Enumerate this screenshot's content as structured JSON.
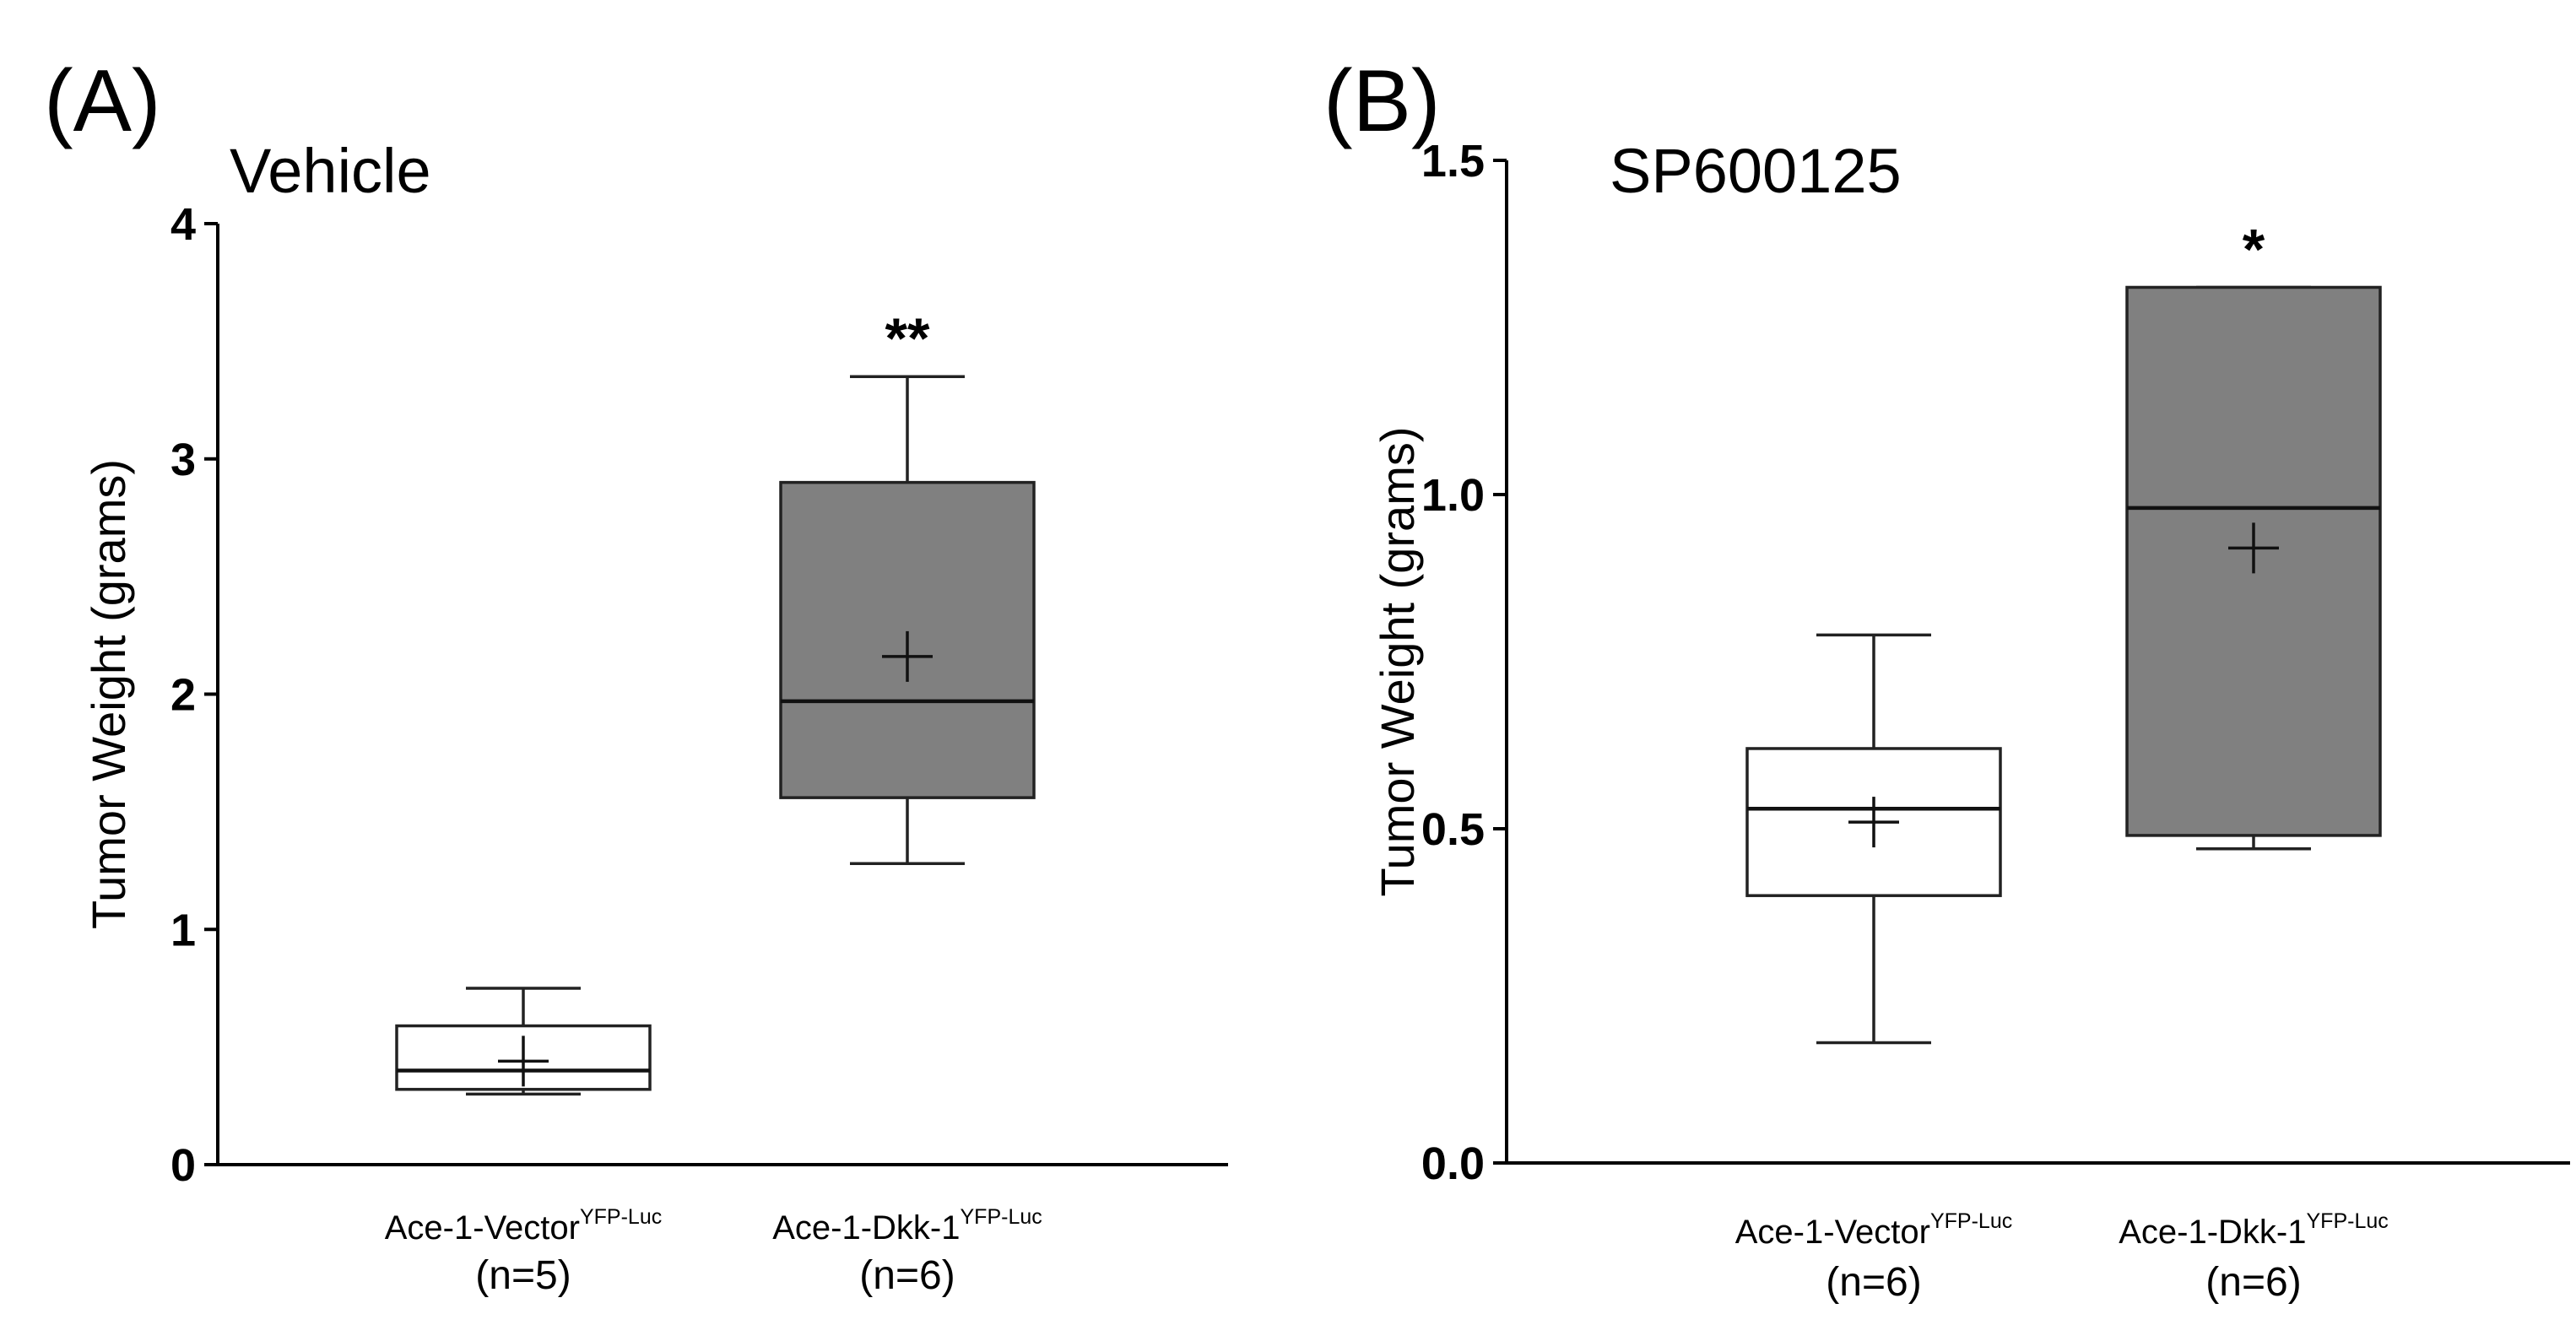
{
  "chart_data": [
    {
      "type": "box",
      "panel_label": "(A)",
      "title": "Vehicle",
      "ylabel": "Tumor Weight (grams)",
      "xlabel": "",
      "ylim": [
        0,
        4
      ],
      "yticks": [
        0,
        1,
        2,
        3,
        4
      ],
      "ytick_labels": [
        "0",
        "1",
        "2",
        "3",
        "4"
      ],
      "categories": [
        {
          "name": "Ace-1-Vector",
          "sup": "YFP-Luc",
          "n": "(n=5)"
        },
        {
          "name": "Ace-1-Dkk-1",
          "sup": "YFP-Luc",
          "n": "(n=6)"
        }
      ],
      "boxes": [
        {
          "whisker_low": 0.3,
          "q1": 0.32,
          "median": 0.4,
          "q3": 0.59,
          "whisker_high": 0.75,
          "mean": 0.44,
          "fill": "#ffffff",
          "significance": ""
        },
        {
          "whisker_low": 1.28,
          "q1": 1.56,
          "median": 1.97,
          "q3": 2.9,
          "whisker_high": 3.35,
          "mean": 2.16,
          "fill": "#808080",
          "significance": "**"
        }
      ]
    },
    {
      "type": "box",
      "panel_label": "(B)",
      "title": "SP600125",
      "ylabel": "Tumor Weight (grams)",
      "xlabel": "",
      "ylim": [
        0,
        1.5
      ],
      "yticks": [
        0,
        0.5,
        1,
        1.5
      ],
      "ytick_labels": [
        "0.0",
        "0.5",
        "1.0",
        "1.5"
      ],
      "categories": [
        {
          "name": "Ace-1-Vector",
          "sup": "YFP-Luc",
          "n": "(n=6)"
        },
        {
          "name": "Ace-1-Dkk-1",
          "sup": "YFP-Luc",
          "n": "(n=6)"
        }
      ],
      "boxes": [
        {
          "whisker_low": 0.18,
          "q1": 0.4,
          "median": 0.53,
          "q3": 0.62,
          "whisker_high": 0.79,
          "mean": 0.51,
          "fill": "#ffffff",
          "significance": ""
        },
        {
          "whisker_low": 0.47,
          "q1": 0.49,
          "median": 0.98,
          "q3": 1.31,
          "whisker_high": 1.31,
          "mean": 0.92,
          "fill": "#808080",
          "significance": "*"
        }
      ]
    }
  ]
}
